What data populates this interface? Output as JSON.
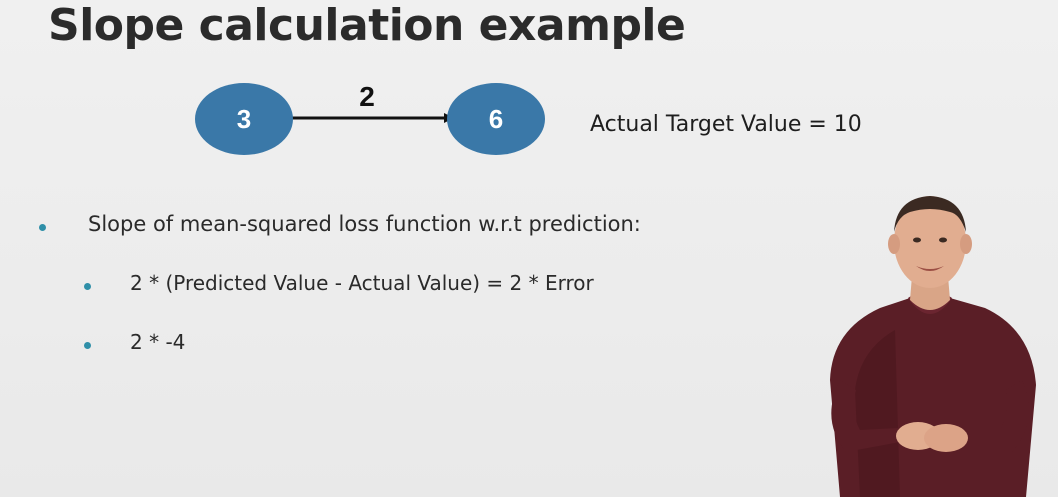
{
  "slide": {
    "title": "Slope calculation example",
    "diagram": {
      "input_node": "3",
      "output_node": "6",
      "edge_weight": "2",
      "node_color": "#3a78a8"
    },
    "target_text": "Actual Target Value = 10",
    "bullets": [
      {
        "text": "Slope of mean-squared loss function w.r.t prediction:"
      },
      {
        "text": "2 * (Predicted Value - Actual Value) = 2 * Error"
      },
      {
        "text": "2 * -4"
      }
    ],
    "bullet_color": "#2f8fa8"
  }
}
